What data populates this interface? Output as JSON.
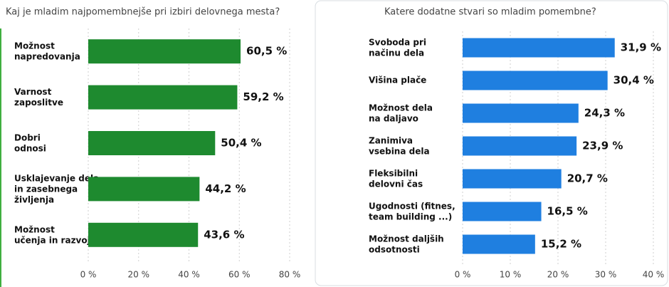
{
  "chart_data": [
    {
      "type": "bar",
      "orientation": "horizontal",
      "title": "Kaj je mladim najpomembnejše pri izbiri delovnega mesta?",
      "color": "#1e8a2f",
      "categories": [
        "Možnost\nnapredovanja",
        "Varnost\nzaposlitve",
        "Dobri\nodnosi",
        "Usklajevanje dela\nin zasebnega\nživljenja",
        "Možnost\nučenja in razvoja"
      ],
      "values": [
        60.5,
        59.2,
        50.4,
        44.2,
        43.6
      ],
      "value_labels": [
        "60,5 %",
        "59,2 %",
        "50,4 %",
        "44,2 %",
        "43,6 %"
      ],
      "xlim": [
        0,
        80
      ],
      "xticks": [
        {
          "value": 0,
          "label": "0 %"
        },
        {
          "value": 20,
          "label": "20 %"
        },
        {
          "value": 40,
          "label": "40 %"
        },
        {
          "value": 60,
          "label": "60 %"
        },
        {
          "value": 80,
          "label": "80 %"
        }
      ],
      "grid": true
    },
    {
      "type": "bar",
      "orientation": "horizontal",
      "title": "Katere dodatne stvari so mladim pomembne?",
      "color": "#1f7fe0",
      "categories": [
        "Svoboda pri\nnačinu dela",
        "Višina plače",
        "Možnost dela\nna daljavo",
        "Zanimiva\nvsebina dela",
        "Fleksibilni\ndelovni čas",
        "Ugodnosti (fitnes,\nteam building ...)",
        "Možnost daljših\nodsotnosti"
      ],
      "values": [
        31.9,
        30.4,
        24.3,
        23.9,
        20.7,
        16.5,
        15.2
      ],
      "value_labels": [
        "31,9 %",
        "30,4 %",
        "24,3 %",
        "23,9 %",
        "20,7 %",
        "16,5 %",
        "15,2 %"
      ],
      "xlim": [
        0,
        40
      ],
      "xticks": [
        {
          "value": 0,
          "label": "0 %"
        },
        {
          "value": 10,
          "label": "10 %"
        },
        {
          "value": 20,
          "label": "20 %"
        },
        {
          "value": 30,
          "label": "30 %"
        },
        {
          "value": 40,
          "label": "40 %"
        }
      ],
      "grid": true
    }
  ]
}
